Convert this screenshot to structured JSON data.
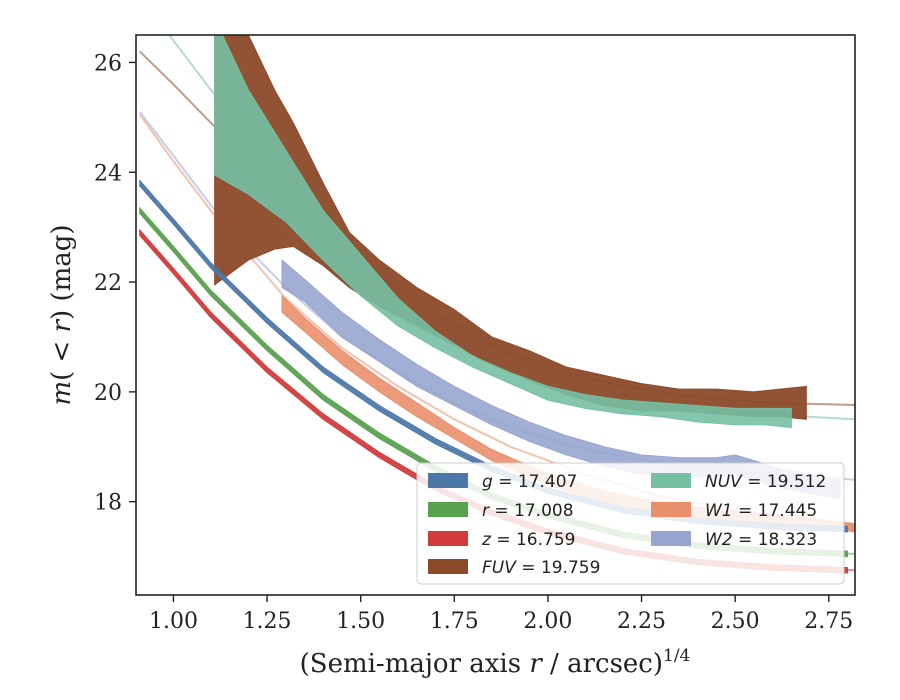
{
  "chart_data": {
    "type": "line",
    "xlabel": "(Semi-major axis r / arcsec)^{1/4}",
    "xlabel_parts": {
      "main": "(Semi-major axis ",
      "var": "r",
      "rest": " / arcsec)",
      "sup": "1/4"
    },
    "ylabel": "m(< r) (mag)",
    "ylabel_parts": {
      "m": "m",
      "open": "(",
      "lt": " < ",
      "r": "r",
      "close": ")",
      "unit": " (mag)"
    },
    "xlim": [
      0.9,
      2.82
    ],
    "ylim": [
      26.5,
      16.3
    ],
    "y_inverted": true,
    "xticks": [
      "1.00",
      "1.25",
      "1.50",
      "1.75",
      "2.00",
      "2.25",
      "2.50",
      "2.75"
    ],
    "xtick_values": [
      1.0,
      1.25,
      1.5,
      1.75,
      2.0,
      2.25,
      2.5,
      2.75
    ],
    "yticks": [
      "18",
      "20",
      "22",
      "24",
      "26"
    ],
    "ytick_values": [
      18,
      20,
      22,
      24,
      26
    ],
    "legend_position": "lower-right",
    "series": [
      {
        "name": "g = 17.407",
        "band": "g",
        "mag": "17.407",
        "color": "#4c78a8",
        "model_x": [
          0.91,
          1.0,
          1.1,
          1.25,
          1.4,
          1.55,
          1.7,
          1.85,
          2.0,
          2.2,
          2.4,
          2.6,
          2.82
        ],
        "model_y": [
          23.8,
          23.1,
          22.3,
          21.3,
          20.4,
          19.7,
          19.1,
          18.6,
          18.2,
          17.85,
          17.65,
          17.55,
          17.5
        ],
        "obs_x": [
          0.91,
          1.0,
          1.1,
          1.25,
          1.4,
          1.55,
          1.7,
          1.85,
          2.0,
          2.2,
          2.4,
          2.6,
          2.8
        ],
        "obs_lo": [
          23.85,
          23.15,
          22.35,
          21.35,
          20.45,
          19.75,
          19.15,
          18.65,
          18.25,
          17.9,
          17.7,
          17.6,
          17.55
        ],
        "obs_hi": [
          23.75,
          23.05,
          22.25,
          21.25,
          20.35,
          19.65,
          19.05,
          18.55,
          18.15,
          17.8,
          17.6,
          17.5,
          17.45
        ]
      },
      {
        "name": "r = 17.008",
        "band": "r",
        "mag": "17.008",
        "color": "#59a14f",
        "model_x": [
          0.91,
          1.0,
          1.1,
          1.25,
          1.4,
          1.55,
          1.7,
          1.85,
          2.0,
          2.2,
          2.4,
          2.6,
          2.82
        ],
        "model_y": [
          23.3,
          22.6,
          21.8,
          20.8,
          19.9,
          19.2,
          18.6,
          18.1,
          17.75,
          17.4,
          17.2,
          17.1,
          17.05
        ],
        "obs_x": [
          0.91,
          1.0,
          1.1,
          1.25,
          1.4,
          1.55,
          1.7,
          1.85,
          2.0,
          2.2,
          2.4,
          2.6,
          2.8
        ],
        "obs_lo": [
          23.35,
          22.65,
          21.85,
          20.85,
          19.95,
          19.25,
          18.65,
          18.15,
          17.8,
          17.45,
          17.25,
          17.15,
          17.1
        ],
        "obs_hi": [
          23.25,
          22.55,
          21.75,
          20.75,
          19.85,
          19.15,
          18.55,
          18.05,
          17.7,
          17.35,
          17.15,
          17.05,
          17.0
        ]
      },
      {
        "name": "z = 16.759",
        "band": "z",
        "mag": "16.759",
        "color": "#d13b3b",
        "model_x": [
          0.91,
          1.0,
          1.1,
          1.25,
          1.4,
          1.55,
          1.7,
          1.85,
          2.0,
          2.2,
          2.4,
          2.6,
          2.82
        ],
        "model_y": [
          22.9,
          22.2,
          21.4,
          20.4,
          19.55,
          18.85,
          18.25,
          17.8,
          17.45,
          17.1,
          16.9,
          16.8,
          16.75
        ],
        "obs_x": [
          0.91,
          1.0,
          1.1,
          1.25,
          1.4,
          1.55,
          1.7,
          1.85,
          2.0,
          2.2,
          2.4,
          2.6,
          2.8
        ],
        "obs_lo": [
          22.95,
          22.25,
          21.45,
          20.45,
          19.6,
          18.9,
          18.3,
          17.85,
          17.5,
          17.15,
          16.95,
          16.85,
          16.8
        ],
        "obs_hi": [
          22.85,
          22.15,
          21.35,
          20.35,
          19.5,
          18.8,
          18.2,
          17.75,
          17.4,
          17.05,
          16.85,
          16.75,
          16.7
        ]
      },
      {
        "name": "FUV = 19.759",
        "band": "FUV",
        "mag": "19.759",
        "color": "#8c4a2a",
        "model_x": [
          0.91,
          1.0,
          1.1,
          1.25,
          1.4,
          1.55,
          1.7,
          1.85,
          2.0,
          2.2,
          2.4,
          2.6,
          2.82
        ],
        "model_y": [
          26.2,
          25.6,
          24.9,
          23.9,
          22.9,
          22.1,
          21.4,
          20.85,
          20.45,
          20.1,
          19.9,
          19.8,
          19.76
        ],
        "obs_x": [
          1.11,
          1.2,
          1.27,
          1.32,
          1.4,
          1.47,
          1.55,
          1.65,
          1.75,
          1.85,
          1.95,
          2.05,
          2.15,
          2.25,
          2.35,
          2.45,
          2.55,
          2.62,
          2.69
        ],
        "obs_lo": [
          26.8,
          26.5,
          25.5,
          24.9,
          23.8,
          22.9,
          22.4,
          21.9,
          21.5,
          21.0,
          20.75,
          20.45,
          20.3,
          20.15,
          20.05,
          20.05,
          20.0,
          20.05,
          20.1
        ],
        "obs_hi": [
          21.95,
          22.4,
          22.6,
          22.65,
          22.3,
          21.9,
          21.55,
          21.2,
          20.85,
          20.5,
          20.2,
          19.95,
          19.75,
          19.65,
          19.65,
          19.6,
          19.55,
          19.55,
          19.5
        ]
      },
      {
        "name": "NUV = 19.512",
        "band": "NUV",
        "mag": "19.512",
        "color": "#76c0a3",
        "model_x": [
          0.91,
          1.0,
          1.1,
          1.25,
          1.4,
          1.55,
          1.7,
          1.85,
          2.0,
          2.2,
          2.4,
          2.6,
          2.82
        ],
        "model_y": [
          27.2,
          26.4,
          25.5,
          24.2,
          23.1,
          22.2,
          21.45,
          20.85,
          20.35,
          19.95,
          19.7,
          19.58,
          19.5
        ],
        "obs_x": [
          1.11,
          1.2,
          1.3,
          1.4,
          1.5,
          1.6,
          1.7,
          1.8,
          1.9,
          2.0,
          2.1,
          2.2,
          2.3,
          2.4,
          2.5,
          2.58,
          2.65
        ],
        "obs_lo": [
          26.8,
          25.5,
          24.4,
          23.3,
          22.5,
          21.7,
          21.1,
          20.65,
          20.35,
          20.1,
          19.95,
          19.85,
          19.8,
          19.75,
          19.7,
          19.7,
          19.7
        ],
        "obs_hi": [
          23.95,
          23.6,
          23.1,
          22.4,
          21.75,
          21.2,
          20.8,
          20.45,
          20.15,
          19.85,
          19.7,
          19.6,
          19.55,
          19.45,
          19.4,
          19.4,
          19.35
        ]
      },
      {
        "name": "W1 = 17.445",
        "band": "W1",
        "mag": "17.445",
        "color": "#e98f6c",
        "model_x": [
          0.91,
          1.0,
          1.1,
          1.2,
          1.3,
          1.45,
          1.6,
          1.75,
          1.9,
          2.1,
          2.3,
          2.5,
          2.7,
          2.82
        ],
        "model_y": [
          25.05,
          24.2,
          23.3,
          22.5,
          21.7,
          20.8,
          20.1,
          19.5,
          19.0,
          18.5,
          18.1,
          17.85,
          17.65,
          17.55
        ],
        "obs_x": [
          1.29,
          1.35,
          1.45,
          1.55,
          1.65,
          1.75,
          1.85,
          1.95,
          2.05,
          2.15,
          2.25,
          2.35,
          2.45,
          2.55,
          2.65,
          2.75,
          2.82
        ],
        "obs_lo": [
          21.75,
          21.35,
          20.75,
          20.25,
          19.8,
          19.35,
          18.95,
          18.65,
          18.4,
          18.2,
          18.05,
          17.95,
          17.85,
          17.8,
          17.75,
          17.65,
          17.6
        ],
        "obs_hi": [
          21.45,
          21.1,
          20.5,
          20.0,
          19.55,
          19.15,
          18.75,
          18.45,
          18.2,
          18.0,
          17.85,
          17.75,
          17.7,
          17.6,
          17.55,
          17.5,
          17.45
        ]
      },
      {
        "name": "W2 = 18.323",
        "band": "W2",
        "mag": "18.323",
        "color": "#97a6cf",
        "model_x": [
          0.91,
          1.0,
          1.1,
          1.2,
          1.3,
          1.45,
          1.6,
          1.75,
          1.9,
          2.1,
          2.3,
          2.5,
          2.7,
          2.82
        ],
        "model_y": [
          25.1,
          24.3,
          23.4,
          22.6,
          21.9,
          21.0,
          20.35,
          19.8,
          19.35,
          18.95,
          18.7,
          18.55,
          18.45,
          18.4
        ],
        "obs_x": [
          1.29,
          1.35,
          1.45,
          1.55,
          1.65,
          1.75,
          1.85,
          1.95,
          2.05,
          2.15,
          2.25,
          2.35,
          2.45,
          2.5,
          2.55,
          2.62,
          2.7,
          2.78
        ],
        "obs_lo": [
          22.4,
          22.05,
          21.45,
          20.95,
          20.5,
          20.1,
          19.75,
          19.45,
          19.2,
          19.0,
          18.85,
          18.8,
          18.8,
          18.85,
          18.75,
          18.6,
          18.5,
          18.4
        ],
        "obs_hi": [
          21.9,
          21.65,
          21.0,
          20.55,
          20.1,
          19.75,
          19.4,
          19.1,
          18.85,
          18.65,
          18.5,
          18.45,
          18.45,
          18.5,
          18.4,
          18.25,
          18.15,
          18.05
        ]
      }
    ],
    "legend_layout": [
      [
        "g",
        "r",
        "z",
        "FUV"
      ],
      [
        "NUV",
        "W1",
        "W2"
      ]
    ]
  }
}
